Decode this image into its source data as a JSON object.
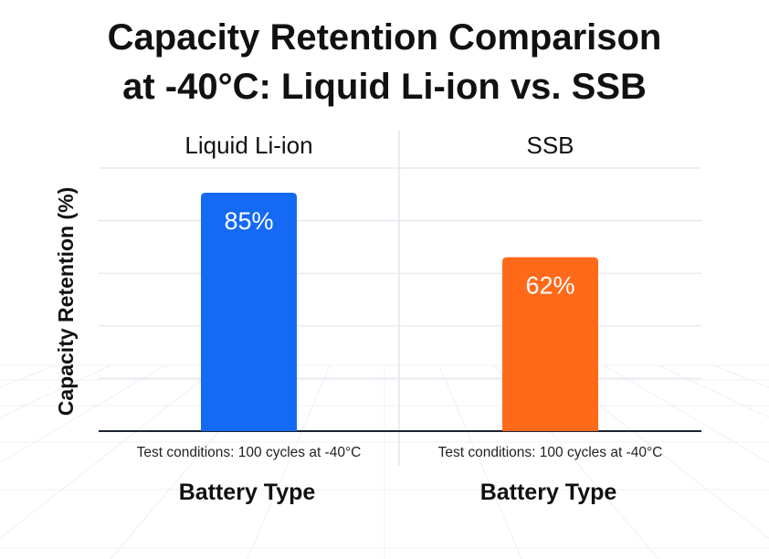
{
  "chart_data": {
    "type": "bar",
    "title_lines": [
      "Capacity Retention Comparison",
      "at -40°C: Liquid Li-ion vs. SSB"
    ],
    "ylabel": "Capacity Retention (%)",
    "ylim": [
      0,
      100
    ],
    "grid": true,
    "panels": [
      {
        "header": "Liquid Li-ion",
        "category": "Liquid Li-ion",
        "value": 85,
        "label": "85%",
        "color": "#1469f5",
        "note": "Test conditions: 100 cycles at -40°C",
        "xlabel": "Battery Type"
      },
      {
        "header": "SSB",
        "category": "SSB",
        "value": 62,
        "label": "62%",
        "color": "#ff6a1a",
        "note": "Test conditions: 100 cycles at -40°C",
        "xlabel": "Battery Type"
      }
    ]
  }
}
